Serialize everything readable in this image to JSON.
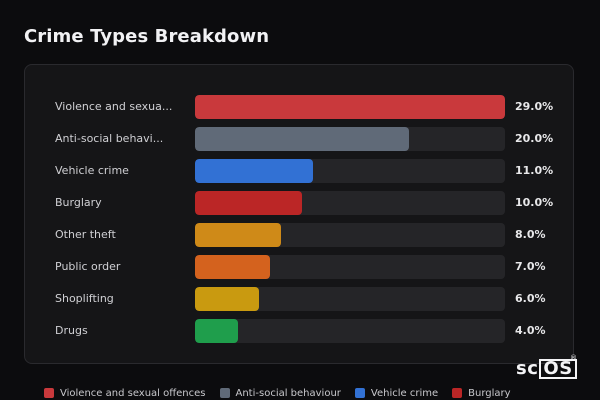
{
  "chart_data": {
    "type": "bar",
    "orientation": "horizontal",
    "title": "Crime Types Breakdown",
    "unit": "%",
    "categories": [
      "Violence and sexual offences",
      "Anti-social behaviour",
      "Vehicle crime",
      "Burglary",
      "Other theft",
      "Public order",
      "Shoplifting",
      "Drugs"
    ],
    "display_labels": [
      "Violence and sexua...",
      "Anti-social behavi...",
      "Vehicle crime",
      "Burglary",
      "Other theft",
      "Public order",
      "Shoplifting",
      "Drugs"
    ],
    "values": [
      29.0,
      20.0,
      11.0,
      10.0,
      8.0,
      7.0,
      6.0,
      4.0
    ],
    "value_labels": [
      "29.0%",
      "20.0%",
      "11.0%",
      "10.0%",
      "8.0%",
      "7.0%",
      "6.0%",
      "4.0%"
    ],
    "colors": [
      "#c9393c",
      "#606a78",
      "#3271d4",
      "#bb2626",
      "#cf8a18",
      "#d4621e",
      "#c99a10",
      "#1f9e4c"
    ],
    "xlim": [
      0,
      29.0
    ],
    "legend_placement": "bottom",
    "legend": [
      {
        "label": "Violence and sexual offences",
        "color": "#c9393c"
      },
      {
        "label": "Anti-social behaviour",
        "color": "#606a78"
      },
      {
        "label": "Vehicle crime",
        "color": "#3271d4"
      },
      {
        "label": "Burglary",
        "color": "#bb2626"
      }
    ],
    "grid": false
  },
  "watermark": {
    "prefix": "sc",
    "boxed": "OS",
    "mark": "®"
  }
}
